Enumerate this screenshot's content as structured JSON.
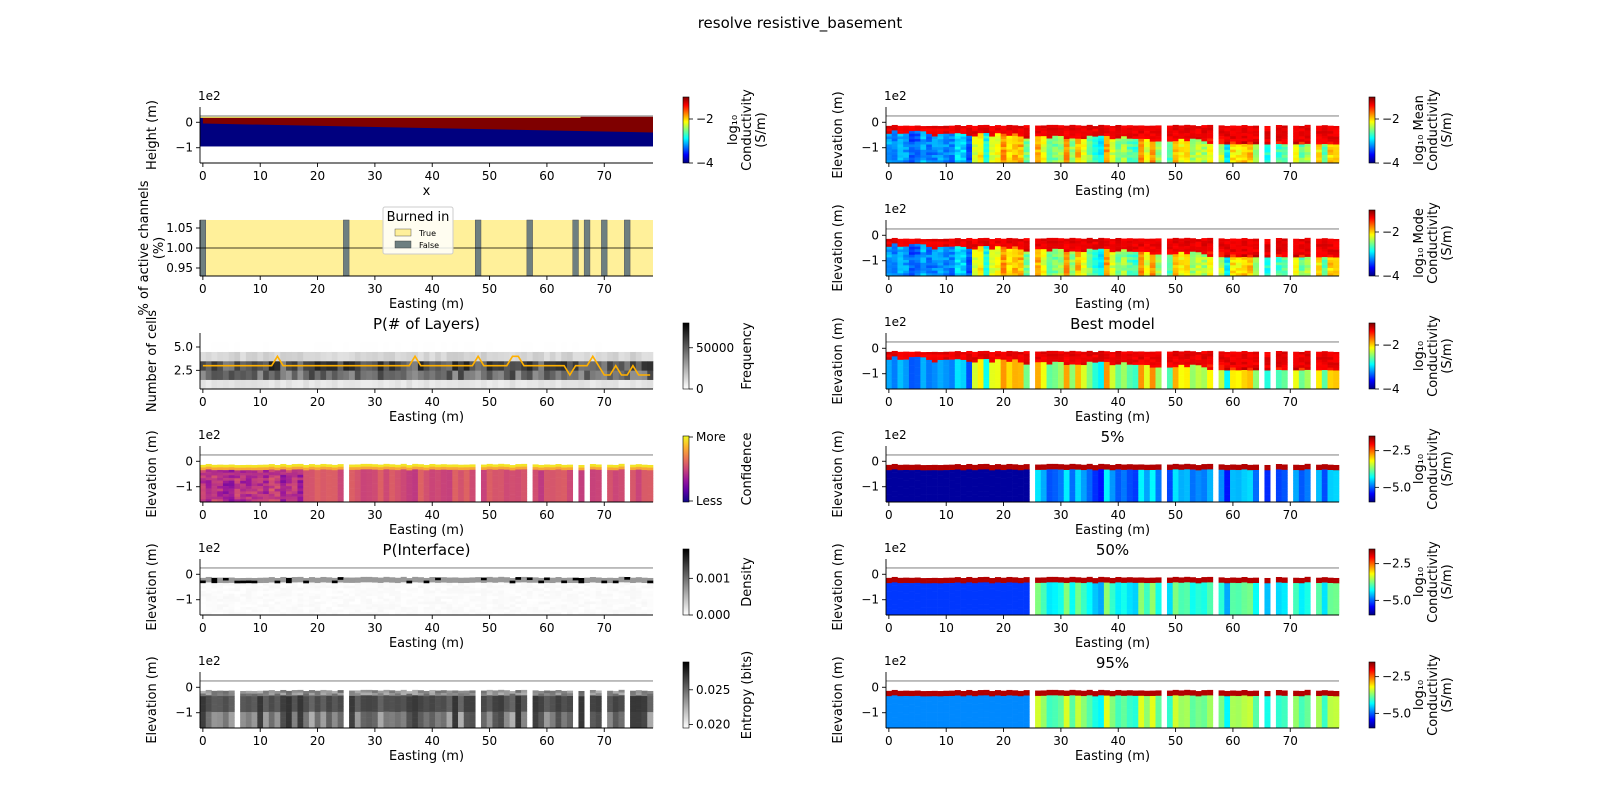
{
  "figure": {
    "title": "resolve resistive_basement"
  },
  "colors": {
    "jet": [
      "#00007f",
      "#0000ff",
      "#007fff",
      "#00ffff",
      "#7fff7f",
      "#ffff00",
      "#ff7f00",
      "#ff0000",
      "#7f0000"
    ],
    "plasma": [
      "#0d0887",
      "#5b01a5",
      "#9a179b",
      "#cb4678",
      "#eb7852",
      "#fbb32f",
      "#f0f921"
    ],
    "gray_r": [
      "#ffffff",
      "#000000"
    ],
    "burned_true": "#fff09a",
    "burned_false": "#6e7f80",
    "median_line": "#ffb000",
    "elevation_line": "#b0b0b0"
  },
  "chart_data": [
    {
      "id": "L1",
      "type": "heatmap",
      "title": "",
      "xlabel": "x",
      "ylabel": "Height (m)",
      "scale_label": "1e2",
      "xlim": [
        -0.5,
        78.5
      ],
      "ylim": [
        -1.6,
        0.6
      ],
      "xticks": [
        0,
        10,
        20,
        30,
        40,
        50,
        60,
        70
      ],
      "xticklabels": [
        "0",
        "10",
        "20",
        "30",
        "40",
        "50",
        "60",
        "70"
      ],
      "yticks": [
        0,
        -1
      ],
      "yticklabels": [
        "0",
        "−1"
      ],
      "model": {
        "kind": "true_model",
        "conductive_layer_bottom": {
          "x": [
            0,
            78
          ],
          "depth": [
            -0.05,
            -0.4
          ]
        },
        "resistive_basement_bottom": -0.95
      },
      "colorbar": {
        "cmap": "jet",
        "label_lines": [
          "log₁₀",
          "Conductivity",
          "(S/m)"
        ],
        "ticks": [
          -2,
          -4
        ],
        "ticklabels": [
          "−2",
          "−4"
        ],
        "range": [
          -4,
          -1
        ]
      }
    },
    {
      "id": "L2",
      "type": "bar",
      "title": "",
      "xlabel": "Easting (m)",
      "ylabel": "% of active channels\n(%)",
      "xlim": [
        -0.5,
        78.5
      ],
      "ylim": [
        0.93,
        1.07
      ],
      "xticks": [
        0,
        10,
        20,
        30,
        40,
        50,
        60,
        70
      ],
      "xticklabels": [
        "0",
        "10",
        "20",
        "30",
        "40",
        "50",
        "60",
        "70"
      ],
      "yticks": [
        1.05,
        1.0,
        0.95
      ],
      "yticklabels": [
        "1.05",
        "1.00",
        "0.95"
      ],
      "legend": {
        "title": "Burned in",
        "entries": [
          "True",
          "False"
        ],
        "position": "top-center"
      },
      "burned_false_x": [
        0,
        25,
        48,
        57,
        65,
        67,
        70,
        74
      ],
      "value": 1.0
    },
    {
      "id": "L3",
      "type": "heatmap",
      "title": "P(# of Layers)",
      "xlabel": "Easting (m)",
      "ylabel": "Number of cells",
      "xlim": [
        -0.5,
        78.5
      ],
      "ylim": [
        0.5,
        6.5
      ],
      "xticks": [
        0,
        10,
        20,
        30,
        40,
        50,
        60,
        70
      ],
      "xticklabels": [
        "0",
        "10",
        "20",
        "30",
        "40",
        "50",
        "60",
        "70"
      ],
      "yticks": [
        5.0,
        2.5
      ],
      "yticklabels": [
        "5.0",
        "2.5"
      ],
      "median_path": {
        "x": [
          0,
          10,
          12,
          13,
          14,
          35,
          36,
          37,
          38,
          46,
          47,
          48,
          49,
          53,
          54,
          55,
          56,
          63,
          64,
          65,
          66,
          67,
          68,
          69,
          70,
          71,
          72,
          73,
          74,
          75,
          76,
          77,
          78
        ],
        "y": [
          3,
          3,
          3,
          4,
          3,
          3,
          3,
          4,
          3,
          3,
          3,
          4,
          3,
          3,
          4,
          4,
          3,
          3,
          2,
          3,
          3,
          3,
          4,
          3,
          2,
          2,
          3,
          2,
          2,
          3,
          2,
          2,
          2
        ]
      },
      "colorbar": {
        "cmap": "gray_r",
        "label_lines": [
          "Frequency"
        ],
        "ticks": [
          50000,
          0
        ],
        "ticklabels": [
          "50000",
          "0"
        ],
        "range": [
          0,
          80000
        ]
      }
    },
    {
      "id": "L4",
      "type": "heatmap",
      "title": "",
      "xlabel": "Easting (m)",
      "ylabel": "Elevation (m)",
      "scale_label": "1e2",
      "xlim": [
        -0.5,
        78.5
      ],
      "ylim": [
        -1.6,
        0.6
      ],
      "xticks": [
        0,
        10,
        20,
        30,
        40,
        50,
        60,
        70
      ],
      "xticklabels": [
        "0",
        "10",
        "20",
        "30",
        "40",
        "50",
        "60",
        "70"
      ],
      "yticks": [
        0,
        -1
      ],
      "yticklabels": [
        "0",
        "−1"
      ],
      "model": {
        "kind": "confidence",
        "gaps": [
          25,
          48,
          57,
          65,
          67,
          70,
          74
        ]
      },
      "colorbar": {
        "cmap": "plasma",
        "label_lines": [
          "Confidence"
        ],
        "ticks": [
          "More",
          "Less"
        ],
        "ticklabels": [
          "More",
          "Less"
        ],
        "range": [
          0,
          1
        ]
      }
    },
    {
      "id": "L5",
      "type": "heatmap",
      "title": "P(Interface)",
      "xlabel": "Easting (m)",
      "ylabel": "Elevation (m)",
      "scale_label": "1e2",
      "xlim": [
        -0.5,
        78.5
      ],
      "ylim": [
        -1.6,
        0.6
      ],
      "xticks": [
        0,
        10,
        20,
        30,
        40,
        50,
        60,
        70
      ],
      "xticklabels": [
        "0",
        "10",
        "20",
        "30",
        "40",
        "50",
        "60",
        "70"
      ],
      "yticks": [
        0,
        -1
      ],
      "yticklabels": [
        "0",
        "−1"
      ],
      "model": {
        "kind": "interface"
      },
      "colorbar": {
        "cmap": "gray_r",
        "label_lines": [
          "Density"
        ],
        "ticks": [
          0.001,
          0.0
        ],
        "ticklabels": [
          "0.001",
          "0.000"
        ],
        "range": [
          0,
          0.0018
        ]
      }
    },
    {
      "id": "L6",
      "type": "heatmap",
      "title": "",
      "xlabel": "Easting (m)",
      "ylabel": "Elevation (m)",
      "scale_label": "1e2",
      "xlim": [
        -0.5,
        78.5
      ],
      "ylim": [
        -1.6,
        0.6
      ],
      "xticks": [
        0,
        10,
        20,
        30,
        40,
        50,
        60,
        70
      ],
      "xticklabels": [
        "0",
        "10",
        "20",
        "30",
        "40",
        "50",
        "60",
        "70"
      ],
      "yticks": [
        0,
        -1
      ],
      "yticklabels": [
        "0",
        "−1"
      ],
      "model": {
        "kind": "entropy",
        "gaps": [
          6,
          25,
          48,
          57,
          65,
          67,
          70,
          74
        ]
      },
      "colorbar": {
        "cmap": "gray_r",
        "label_lines": [
          "Entropy (bits)"
        ],
        "ticks": [
          0.025,
          0.02
        ],
        "ticklabels": [
          "0.025",
          "0.020"
        ],
        "range": [
          0.0195,
          0.029
        ]
      }
    },
    {
      "id": "R1",
      "type": "heatmap",
      "title": "",
      "xlabel": "Easting (m)",
      "ylabel": "Elevation (m)",
      "scale_label": "1e2",
      "xlim": [
        -0.5,
        78.5
      ],
      "ylim": [
        -1.6,
        0.6
      ],
      "xticks": [
        0,
        10,
        20,
        30,
        40,
        50,
        60,
        70
      ],
      "xticklabels": [
        "0",
        "10",
        "20",
        "30",
        "40",
        "50",
        "60",
        "70"
      ],
      "yticks": [
        0,
        -1
      ],
      "yticklabels": [
        "0",
        "−1"
      ],
      "model": {
        "kind": "mean",
        "gaps": [
          25,
          48,
          57,
          65,
          67,
          70,
          74
        ]
      },
      "colorbar": {
        "cmap": "jet",
        "label_lines": [
          "log₁₀ Mean",
          "Conductivity",
          "(S/m)"
        ],
        "ticks": [
          -2,
          -4
        ],
        "ticklabels": [
          "−2",
          "−4"
        ],
        "range": [
          -4,
          -1
        ]
      }
    },
    {
      "id": "R2",
      "type": "heatmap",
      "title": "",
      "xlabel": "Easting (m)",
      "ylabel": "Elevation (m)",
      "scale_label": "1e2",
      "xlim": [
        -0.5,
        78.5
      ],
      "ylim": [
        -1.6,
        0.6
      ],
      "xticks": [
        0,
        10,
        20,
        30,
        40,
        50,
        60,
        70
      ],
      "xticklabels": [
        "0",
        "10",
        "20",
        "30",
        "40",
        "50",
        "60",
        "70"
      ],
      "yticks": [
        0,
        -1
      ],
      "yticklabels": [
        "0",
        "−1"
      ],
      "model": {
        "kind": "mode",
        "gaps": [
          25,
          48,
          57,
          65,
          67,
          70,
          74
        ]
      },
      "colorbar": {
        "cmap": "jet",
        "label_lines": [
          "log₁₀ Mode",
          "Conductivity",
          "(S/m)"
        ],
        "ticks": [
          -2,
          -4
        ],
        "ticklabels": [
          "−2",
          "−4"
        ],
        "range": [
          -4,
          -1
        ]
      }
    },
    {
      "id": "R3",
      "type": "heatmap",
      "title": "Best model",
      "xlabel": "Easting (m)",
      "ylabel": "Elevation (m)",
      "scale_label": "1e2",
      "xlim": [
        -0.5,
        78.5
      ],
      "ylim": [
        -1.6,
        0.6
      ],
      "xticks": [
        0,
        10,
        20,
        30,
        40,
        50,
        60,
        70
      ],
      "xticklabels": [
        "0",
        "10",
        "20",
        "30",
        "40",
        "50",
        "60",
        "70"
      ],
      "yticks": [
        0,
        -1
      ],
      "yticklabels": [
        "0",
        "−1"
      ],
      "model": {
        "kind": "best",
        "gaps": [
          25,
          48,
          57,
          65,
          67,
          70,
          74
        ]
      },
      "colorbar": {
        "cmap": "jet",
        "label_lines": [
          "log₁₀",
          "Conductivity",
          "(S/m)"
        ],
        "ticks": [
          -2,
          -4
        ],
        "ticklabels": [
          "−2",
          "−4"
        ],
        "range": [
          -4,
          -1
        ]
      }
    },
    {
      "id": "R4",
      "type": "heatmap",
      "title": "5%",
      "xlabel": "Easting (m)",
      "ylabel": "Elevation (m)",
      "scale_label": "1e2",
      "xlim": [
        -0.5,
        78.5
      ],
      "ylim": [
        -1.6,
        0.6
      ],
      "xticks": [
        0,
        10,
        20,
        30,
        40,
        50,
        60,
        70
      ],
      "xticklabels": [
        "0",
        "10",
        "20",
        "30",
        "40",
        "50",
        "60",
        "70"
      ],
      "yticks": [
        0,
        -1
      ],
      "yticklabels": [
        "0",
        "−1"
      ],
      "model": {
        "kind": "p5",
        "gaps": [
          25,
          48,
          57,
          65,
          67,
          70,
          74
        ]
      },
      "colorbar": {
        "cmap": "jet",
        "label_lines": [
          "log₁₀",
          "Conductivity",
          "(S/m)"
        ],
        "ticks": [
          -2.5,
          -5.0
        ],
        "ticklabels": [
          "−2.5",
          "−5.0"
        ],
        "range": [
          -6,
          -1.5
        ]
      }
    },
    {
      "id": "R5",
      "type": "heatmap",
      "title": "50%",
      "xlabel": "Easting (m)",
      "ylabel": "Elevation (m)",
      "scale_label": "1e2",
      "xlim": [
        -0.5,
        78.5
      ],
      "ylim": [
        -1.6,
        0.6
      ],
      "xticks": [
        0,
        10,
        20,
        30,
        40,
        50,
        60,
        70
      ],
      "xticklabels": [
        "0",
        "10",
        "20",
        "30",
        "40",
        "50",
        "60",
        "70"
      ],
      "yticks": [
        0,
        -1
      ],
      "yticklabels": [
        "0",
        "−1"
      ],
      "model": {
        "kind": "p50",
        "gaps": [
          25,
          48,
          57,
          65,
          67,
          70,
          74
        ]
      },
      "colorbar": {
        "cmap": "jet",
        "label_lines": [
          "log₁₀",
          "Conductivity",
          "(S/m)"
        ],
        "ticks": [
          -2.5,
          -5.0
        ],
        "ticklabels": [
          "−2.5",
          "−5.0"
        ],
        "range": [
          -6,
          -1.5
        ]
      }
    },
    {
      "id": "R6",
      "type": "heatmap",
      "title": "95%",
      "xlabel": "Easting (m)",
      "ylabel": "Elevation (m)",
      "scale_label": "1e2",
      "xlim": [
        -0.5,
        78.5
      ],
      "ylim": [
        -1.6,
        0.6
      ],
      "xticks": [
        0,
        10,
        20,
        30,
        40,
        50,
        60,
        70
      ],
      "xticklabels": [
        "0",
        "10",
        "20",
        "30",
        "40",
        "50",
        "60",
        "70"
      ],
      "yticks": [
        0,
        -1
      ],
      "yticklabels": [
        "0",
        "−1"
      ],
      "model": {
        "kind": "p95",
        "gaps": [
          25,
          48,
          57,
          65,
          67,
          70,
          74
        ]
      },
      "colorbar": {
        "cmap": "jet",
        "label_lines": [
          "log₁₀",
          "Conductivity",
          "(S/m)"
        ],
        "ticks": [
          -2.5,
          -5.0
        ],
        "ticklabels": [
          "−2.5",
          "−5.0"
        ],
        "range": [
          -6,
          -1.5
        ]
      }
    }
  ]
}
